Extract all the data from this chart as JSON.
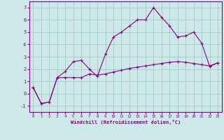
{
  "line1_x": [
    0,
    1,
    2,
    3,
    4,
    5,
    6,
    7,
    8,
    9,
    10,
    11,
    12,
    13,
    14,
    15,
    16,
    17,
    18,
    19,
    20,
    21,
    22,
    23
  ],
  "line1_y": [
    0.5,
    -0.8,
    -0.7,
    1.3,
    1.8,
    2.6,
    2.7,
    2.0,
    1.4,
    3.2,
    4.6,
    5.0,
    5.5,
    6.0,
    6.0,
    7.0,
    6.2,
    5.5,
    4.6,
    4.7,
    5.0,
    4.1,
    2.2,
    2.5
  ],
  "line2_x": [
    0,
    1,
    2,
    3,
    4,
    5,
    6,
    7,
    8,
    9,
    10,
    11,
    12,
    13,
    14,
    15,
    16,
    17,
    18,
    19,
    20,
    21,
    22,
    23
  ],
  "line2_y": [
    0.5,
    -0.8,
    -0.7,
    1.3,
    1.3,
    1.3,
    1.3,
    1.6,
    1.5,
    1.6,
    1.75,
    1.9,
    2.05,
    2.15,
    2.25,
    2.35,
    2.45,
    2.55,
    2.6,
    2.55,
    2.45,
    2.35,
    2.25,
    2.5
  ],
  "line_color": "#880088",
  "bg_color": "#cce8e8",
  "grid_color": "#aacccc",
  "xlabel": "Windchill (Refroidissement éolien,°C)",
  "xlim": [
    -0.5,
    23.5
  ],
  "ylim": [
    -1.5,
    7.5
  ],
  "yticks": [
    -1,
    0,
    1,
    2,
    3,
    4,
    5,
    6,
    7
  ],
  "xticks": [
    0,
    1,
    2,
    3,
    4,
    5,
    6,
    7,
    8,
    9,
    10,
    11,
    12,
    13,
    14,
    15,
    16,
    17,
    18,
    19,
    20,
    21,
    22,
    23
  ]
}
